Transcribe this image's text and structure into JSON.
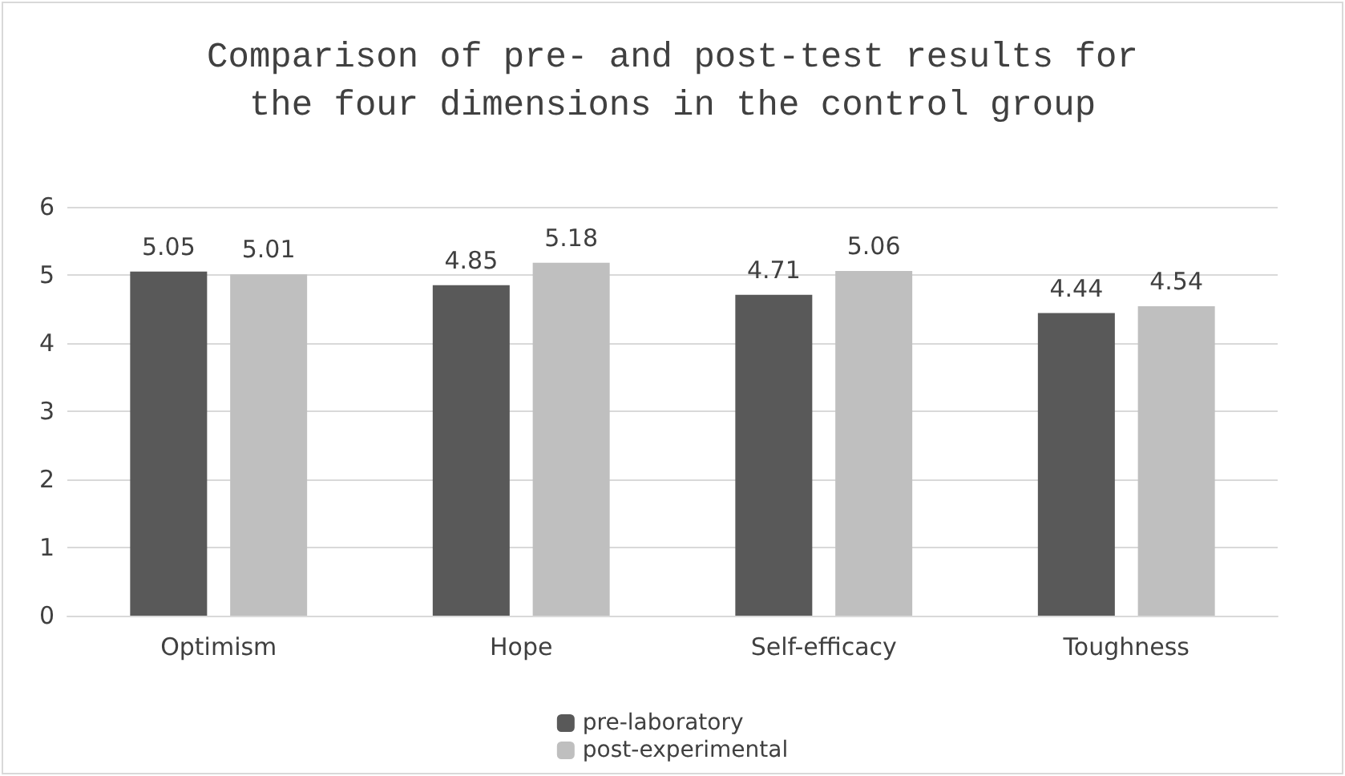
{
  "chart_data": {
    "type": "bar",
    "title": "Comparison of pre- and post-test results for\nthe four dimensions in the control group",
    "categories": [
      "Optimism",
      "Hope",
      "Self-efficacy",
      "Toughness"
    ],
    "series": [
      {
        "name": "pre-laboratory",
        "color": "#595959",
        "values": [
          5.05,
          4.85,
          4.71,
          4.44
        ]
      },
      {
        "name": "post-experimental",
        "color": "#bfbfbf",
        "values": [
          5.01,
          5.18,
          5.06,
          4.54
        ]
      }
    ],
    "ylim": [
      0,
      6
    ],
    "yticks": [
      0,
      1,
      2,
      3,
      4,
      5,
      6
    ],
    "grid": "y",
    "legend": "bottom",
    "data_labels": true
  }
}
